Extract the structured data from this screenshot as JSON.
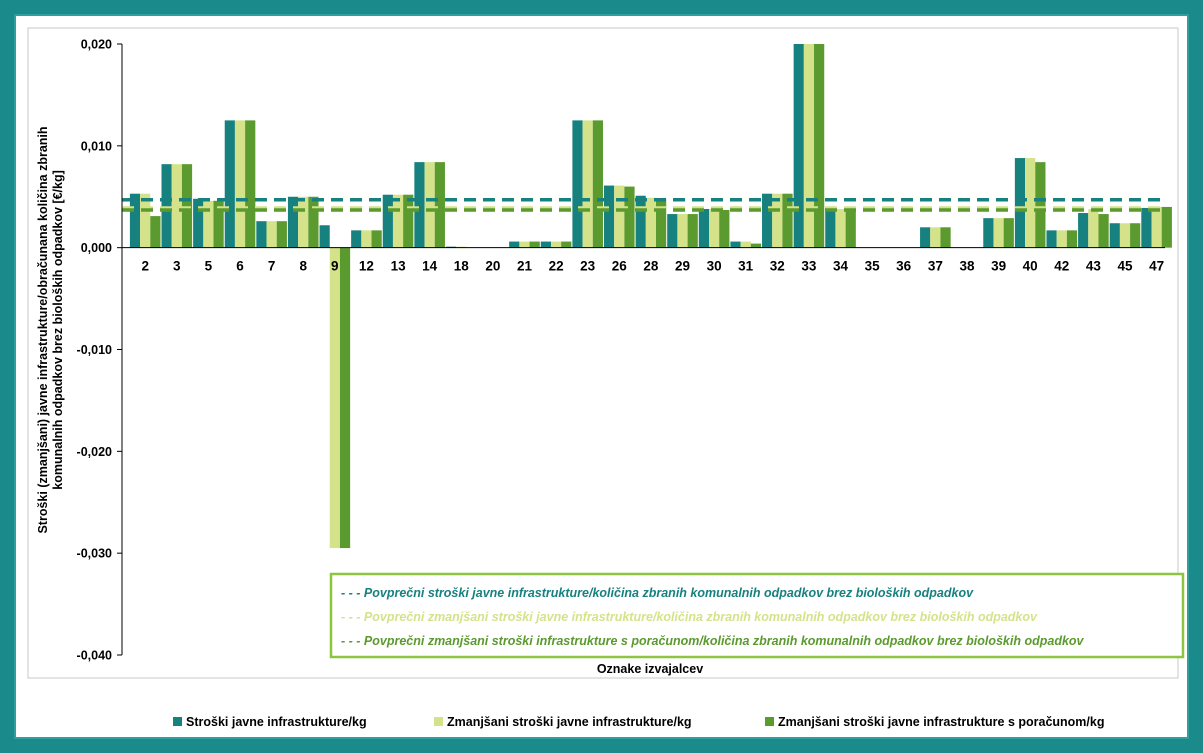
{
  "chart_data": {
    "type": "bar",
    "categories": [
      "2",
      "3",
      "5",
      "6",
      "7",
      "8",
      "9",
      "12",
      "13",
      "14",
      "18",
      "20",
      "21",
      "22",
      "23",
      "26",
      "28",
      "29",
      "30",
      "31",
      "32",
      "33",
      "34",
      "35",
      "36",
      "37",
      "38",
      "39",
      "40",
      "42",
      "43",
      "45",
      "47"
    ],
    "series": [
      {
        "name": "Stroški javne infrastrukture/kg",
        "color": "#17817f",
        "values": [
          0.0053,
          0.0082,
          0.0048,
          0.0125,
          0.0026,
          0.005,
          0.0022,
          0.0017,
          0.0052,
          0.0084,
          0.0001,
          0.0,
          0.0006,
          0.0006,
          0.0125,
          0.0061,
          0.0051,
          0.0033,
          0.0038,
          0.0006,
          0.0053,
          0.02,
          0.0037,
          0.0,
          0.0,
          0.002,
          0.0,
          0.0029,
          0.0088,
          0.0017,
          0.0034,
          0.0024,
          0.0039
        ]
      },
      {
        "name": "Zmanjšani stroški javne infrastrukture/kg",
        "color": "#d4e38a",
        "values": [
          0.0053,
          0.0082,
          0.0046,
          0.0125,
          0.0026,
          0.005,
          -0.0295,
          0.0017,
          0.0052,
          0.0084,
          0.0001,
          0.0,
          0.0006,
          0.0006,
          0.0125,
          0.0061,
          0.0049,
          0.0033,
          0.0038,
          0.0006,
          0.0053,
          0.02,
          0.0038,
          0.0,
          0.0,
          0.002,
          0.0,
          0.0029,
          0.0088,
          0.0017,
          0.0038,
          0.0024,
          0.004
        ]
      },
      {
        "name": "Zmanjšani stroški javne infrastrukture s poračunom/kg",
        "color": "#5a9a2e",
        "values": [
          0.0031,
          0.0082,
          0.0046,
          0.0125,
          0.0026,
          0.005,
          -0.0295,
          0.0017,
          0.0052,
          0.0084,
          0.0,
          0.0,
          0.0006,
          0.0006,
          0.0125,
          0.006,
          0.0048,
          0.0033,
          0.0037,
          0.0004,
          0.0053,
          0.02,
          0.0038,
          0.0,
          0.0,
          0.002,
          0.0,
          0.0029,
          0.0084,
          0.0017,
          0.0033,
          0.0024,
          0.004
        ]
      }
    ],
    "reference_lines": [
      {
        "label": "- - -  Povprečni stroški javne infrastrukture/količina zbranih komunalnih odpadkov brez bioloških odpadkov",
        "value": 0.0047,
        "color": "#17817f"
      },
      {
        "label": "- - - Povprečni zmanjšani stroški javne infrastrukture/količina zbranih komunalnih odpadkov brez bioloških   odpadkov",
        "value": 0.0039,
        "color": "#d4e38a"
      },
      {
        "label": "- - - Povprečni zmanjšani stroški infrastrukture s poračunom/količina zbranih komunalnih odpadkov brez  bioloških odpadkov",
        "value": 0.0037,
        "color": "#5a9a2e"
      }
    ],
    "ylim": [
      -0.04,
      0.02
    ],
    "yticks": [
      0.02,
      0.01,
      0.0,
      -0.01,
      -0.02,
      -0.03,
      -0.04
    ],
    "ytick_labels": [
      "0,020",
      "0,010",
      "0,000",
      "-0,010",
      "-0,020",
      "-0,030",
      "-0,040"
    ],
    "xlabel": "Oznake izvajalcev",
    "ylabel": [
      "Stroški (zmanjšani) javne infrastrukture/obračunana  količina zbranih",
      "komunalnih odpadkov brez bioloških odpadkov [€/kg]"
    ],
    "grid": false,
    "legend_position": "bottom"
  }
}
